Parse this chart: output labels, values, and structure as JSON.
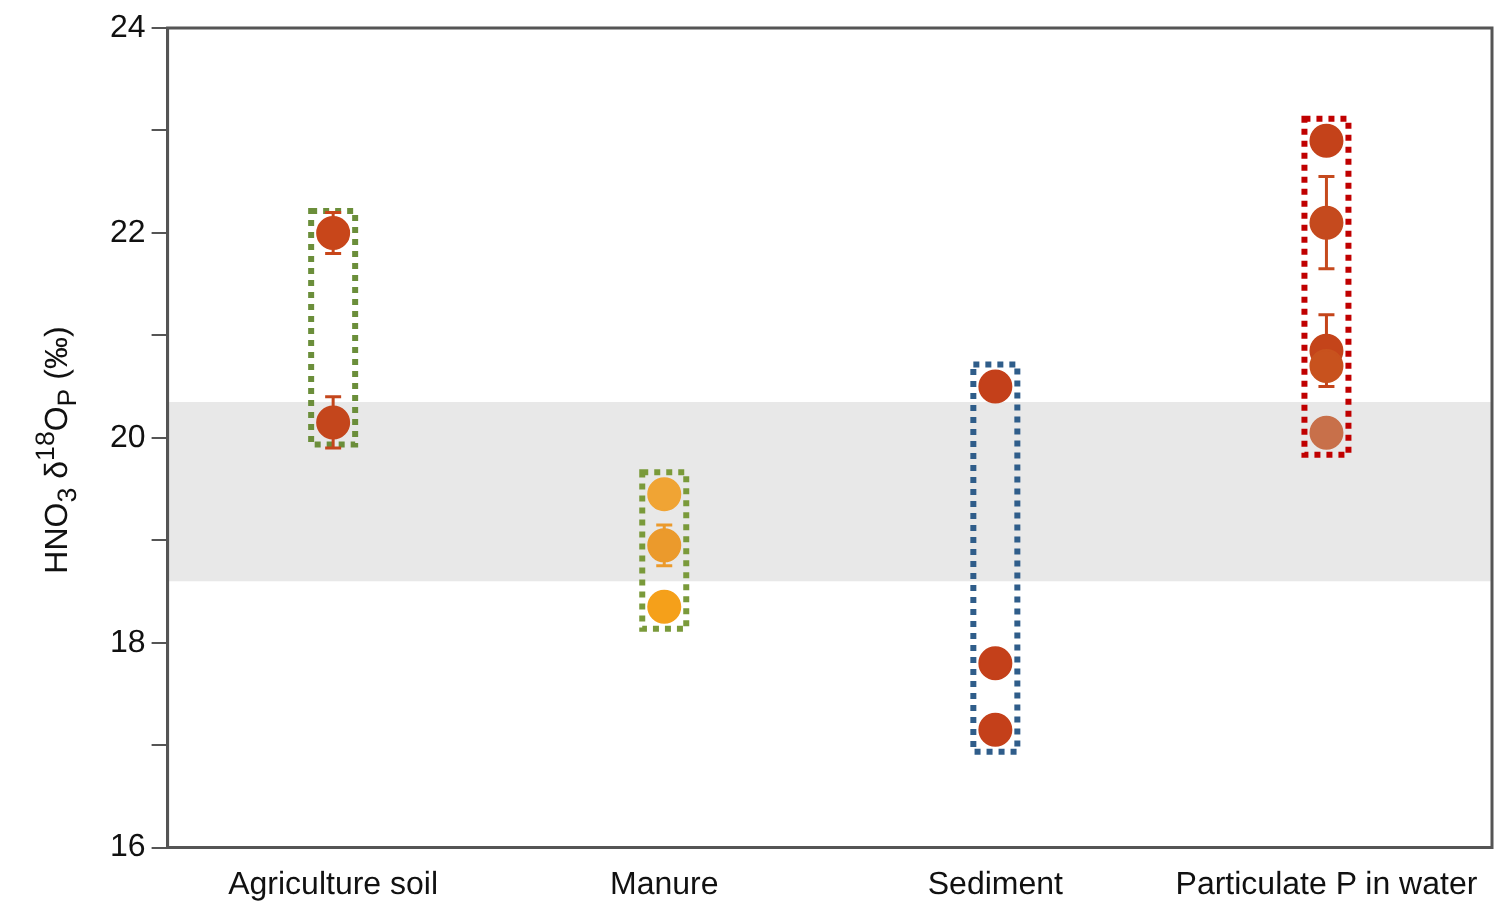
{
  "chart_data": {
    "type": "scatter",
    "ylabel": "HNO$_{3}$ δ$^{18}$O$_{P}$ (‰)",
    "categories": [
      "Agriculture soil",
      "Manure",
      "Sediment",
      "Particulate P in water"
    ],
    "series": [
      {
        "x": [
          "Agriculture soil",
          "Agriculture soil",
          "Manure",
          "Manure",
          "Manure",
          "Sediment",
          "Sediment",
          "Sediment",
          "Particulate P in water",
          "Particulate P in water",
          "Particulate P in water",
          "Particulate P in water",
          "Particulate P in water"
        ],
        "values": [
          22.0,
          20.15,
          19.45,
          18.95,
          18.35,
          20.5,
          17.8,
          17.15,
          22.9,
          22.1,
          20.85,
          20.7,
          20.05
        ],
        "errors": [
          0.2,
          0.25,
          null,
          0.2,
          null,
          null,
          null,
          null,
          null,
          0.45,
          0.35,
          null,
          null
        ],
        "colors": [
          "#c8461a",
          "#c4461c",
          "#f0a434",
          "#eb9a2c",
          "#f5a01a",
          "#c4401a",
          "#c4401a",
          "#c4401a",
          "#c4421a",
          "#c54a1e",
          "#c4441a",
          "#c8521e",
          "#c8704a"
        ]
      }
    ],
    "marker": "circle",
    "ylim": [
      16,
      24
    ],
    "yticks": [
      16,
      {
        "value": 17,
        "label": null
      },
      18,
      {
        "value": 19,
        "label": null
      },
      20,
      {
        "value": 21,
        "label": null
      },
      22,
      {
        "value": 23,
        "label": null
      },
      24
    ],
    "bands": [
      {
        "axis": "y",
        "from": 18.6,
        "to": 20.35,
        "color": "#e8e8e8"
      }
    ],
    "grid": false,
    "legend": false
  }
}
